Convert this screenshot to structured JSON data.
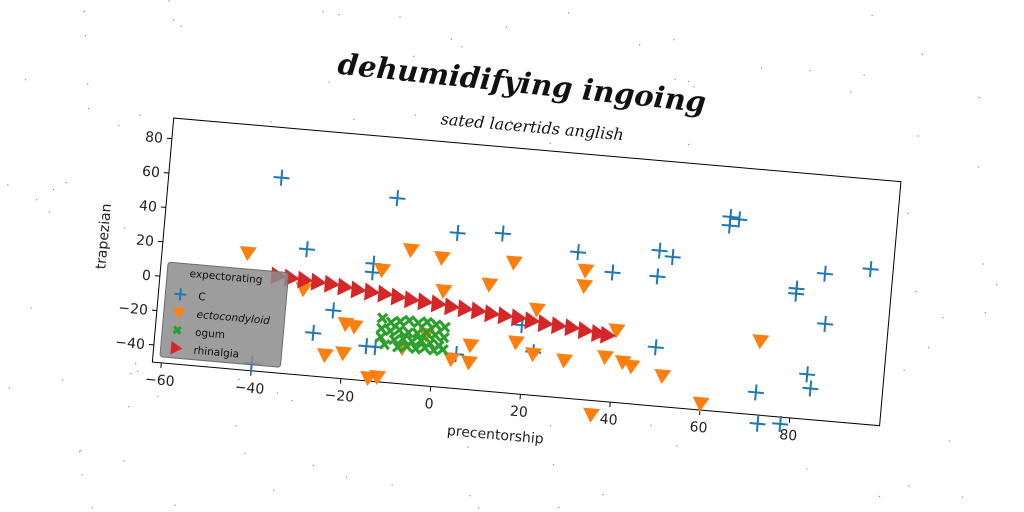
{
  "chart_data": {
    "type": "scatter",
    "title": "dehumidifying ingoing",
    "subtitle": "sated lacertids anglish",
    "xlabel": "precentorship",
    "ylabel": "trapezian",
    "xlim": [
      -62,
      100
    ],
    "ylim": [
      -50,
      92
    ],
    "xticks": [
      -60,
      -40,
      -20,
      0,
      20,
      40,
      60,
      80
    ],
    "yticks": [
      -40,
      -20,
      0,
      20,
      40,
      60,
      80
    ],
    "grid": false,
    "legend": {
      "title": "expectorating",
      "placement": "lower-left",
      "entries": [
        "C",
        "ectocondyloid",
        "ogum",
        "rhinalgia"
      ]
    },
    "series": [
      {
        "name": "C",
        "marker": "plus",
        "color": "#1f77b4",
        "points": [
          [
            -37,
            63
          ],
          [
            -30,
            23
          ],
          [
            -11,
            57
          ],
          [
            -15,
            18
          ],
          [
            -15,
            13
          ],
          [
            -23,
            -11
          ],
          [
            -27,
            -25
          ],
          [
            3,
            40
          ],
          [
            13,
            42
          ],
          [
            30,
            35
          ],
          [
            38,
            25
          ],
          [
            48,
            40
          ],
          [
            48,
            25
          ],
          [
            51,
            37
          ],
          [
            63,
            63
          ],
          [
            63,
            58
          ],
          [
            65,
            62
          ],
          [
            79,
            22
          ],
          [
            79,
            25
          ],
          [
            85,
            35
          ],
          [
            86,
            6
          ],
          [
            95,
            40
          ],
          [
            83,
            -24
          ],
          [
            84,
            -32
          ],
          [
            72,
            -37
          ],
          [
            73,
            -55
          ],
          [
            78,
            -54
          ],
          [
            49,
            -16
          ],
          [
            5,
            -30
          ],
          [
            -15,
            -30
          ],
          [
            -40,
            -46
          ],
          [
            -13,
            -30
          ],
          [
            19,
            -10
          ],
          [
            22,
            -25
          ]
        ]
      },
      {
        "name": "ectocondyloid",
        "marker": "triangle-down",
        "color": "#ff7f0e",
        "points": [
          [
            -43,
            18
          ],
          [
            -30,
            0
          ],
          [
            -7,
            28
          ],
          [
            -13,
            15
          ],
          [
            0,
            25
          ],
          [
            11,
            12
          ],
          [
            16,
            26
          ],
          [
            1,
            6
          ],
          [
            22,
            0
          ],
          [
            32,
            25
          ],
          [
            32,
            16
          ],
          [
            -20,
            -18
          ],
          [
            -20,
            -35
          ],
          [
            -14,
            -48
          ],
          [
            -12,
            -47
          ],
          [
            -18,
            -19
          ],
          [
            -24,
            -37
          ],
          [
            -7,
            -29
          ],
          [
            -2,
            -20
          ],
          [
            4,
            -33
          ],
          [
            8,
            -34
          ],
          [
            8,
            -24
          ],
          [
            18,
            -20
          ],
          [
            22,
            -26
          ],
          [
            29,
            -28
          ],
          [
            38,
            -24
          ],
          [
            42,
            -26
          ],
          [
            44,
            -28
          ],
          [
            40,
            -8
          ],
          [
            51,
            -32
          ],
          [
            60,
            -46
          ],
          [
            36,
            -58
          ],
          [
            72,
            -7
          ]
        ]
      },
      {
        "name": "ogum",
        "marker": "x",
        "color": "#2ca02c",
        "points": [
          [
            -12,
            -13
          ],
          [
            -10,
            -15
          ],
          [
            -8,
            -14
          ],
          [
            -6,
            -13
          ],
          [
            -4,
            -14
          ],
          [
            -2,
            -13
          ],
          [
            0,
            -14
          ],
          [
            2,
            -15
          ],
          [
            -12,
            -19
          ],
          [
            -10,
            -20
          ],
          [
            -8,
            -19
          ],
          [
            -6,
            -20
          ],
          [
            -4,
            -20
          ],
          [
            -2,
            -19
          ],
          [
            0,
            -20
          ],
          [
            2,
            -21
          ],
          [
            -12,
            -24
          ],
          [
            -9,
            -25
          ],
          [
            -7,
            -24
          ],
          [
            -5,
            -25
          ],
          [
            -3,
            -24
          ],
          [
            -1,
            -25
          ],
          [
            1,
            -26
          ],
          [
            -11,
            -28
          ],
          [
            -8,
            -29
          ],
          [
            -6,
            -28
          ],
          [
            -4,
            -29
          ],
          [
            -2,
            -28
          ],
          [
            0,
            -29
          ],
          [
            2,
            -28
          ]
        ]
      },
      {
        "name": "rhinalgia",
        "marker": "triangle-right",
        "color": "#d62728",
        "points": [
          [
            -36,
            6
          ],
          [
            -33,
            5.5
          ],
          [
            -30,
            5
          ],
          [
            -27,
            4.5
          ],
          [
            -24,
            4
          ],
          [
            -21,
            3
          ],
          [
            -18,
            2
          ],
          [
            -15,
            1.5
          ],
          [
            -12,
            1
          ],
          [
            -9,
            0
          ],
          [
            -6,
            -1
          ],
          [
            -3,
            -1.5
          ],
          [
            0,
            -2
          ],
          [
            3,
            -3
          ],
          [
            6,
            -3.5
          ],
          [
            9,
            -4
          ],
          [
            12,
            -5
          ],
          [
            15,
            -5.5
          ],
          [
            18,
            -6
          ],
          [
            21,
            -7
          ],
          [
            24,
            -8
          ],
          [
            27,
            -8.5
          ],
          [
            30,
            -9
          ],
          [
            33,
            -10
          ],
          [
            36,
            -11
          ],
          [
            38,
            -11.5
          ]
        ]
      }
    ]
  }
}
